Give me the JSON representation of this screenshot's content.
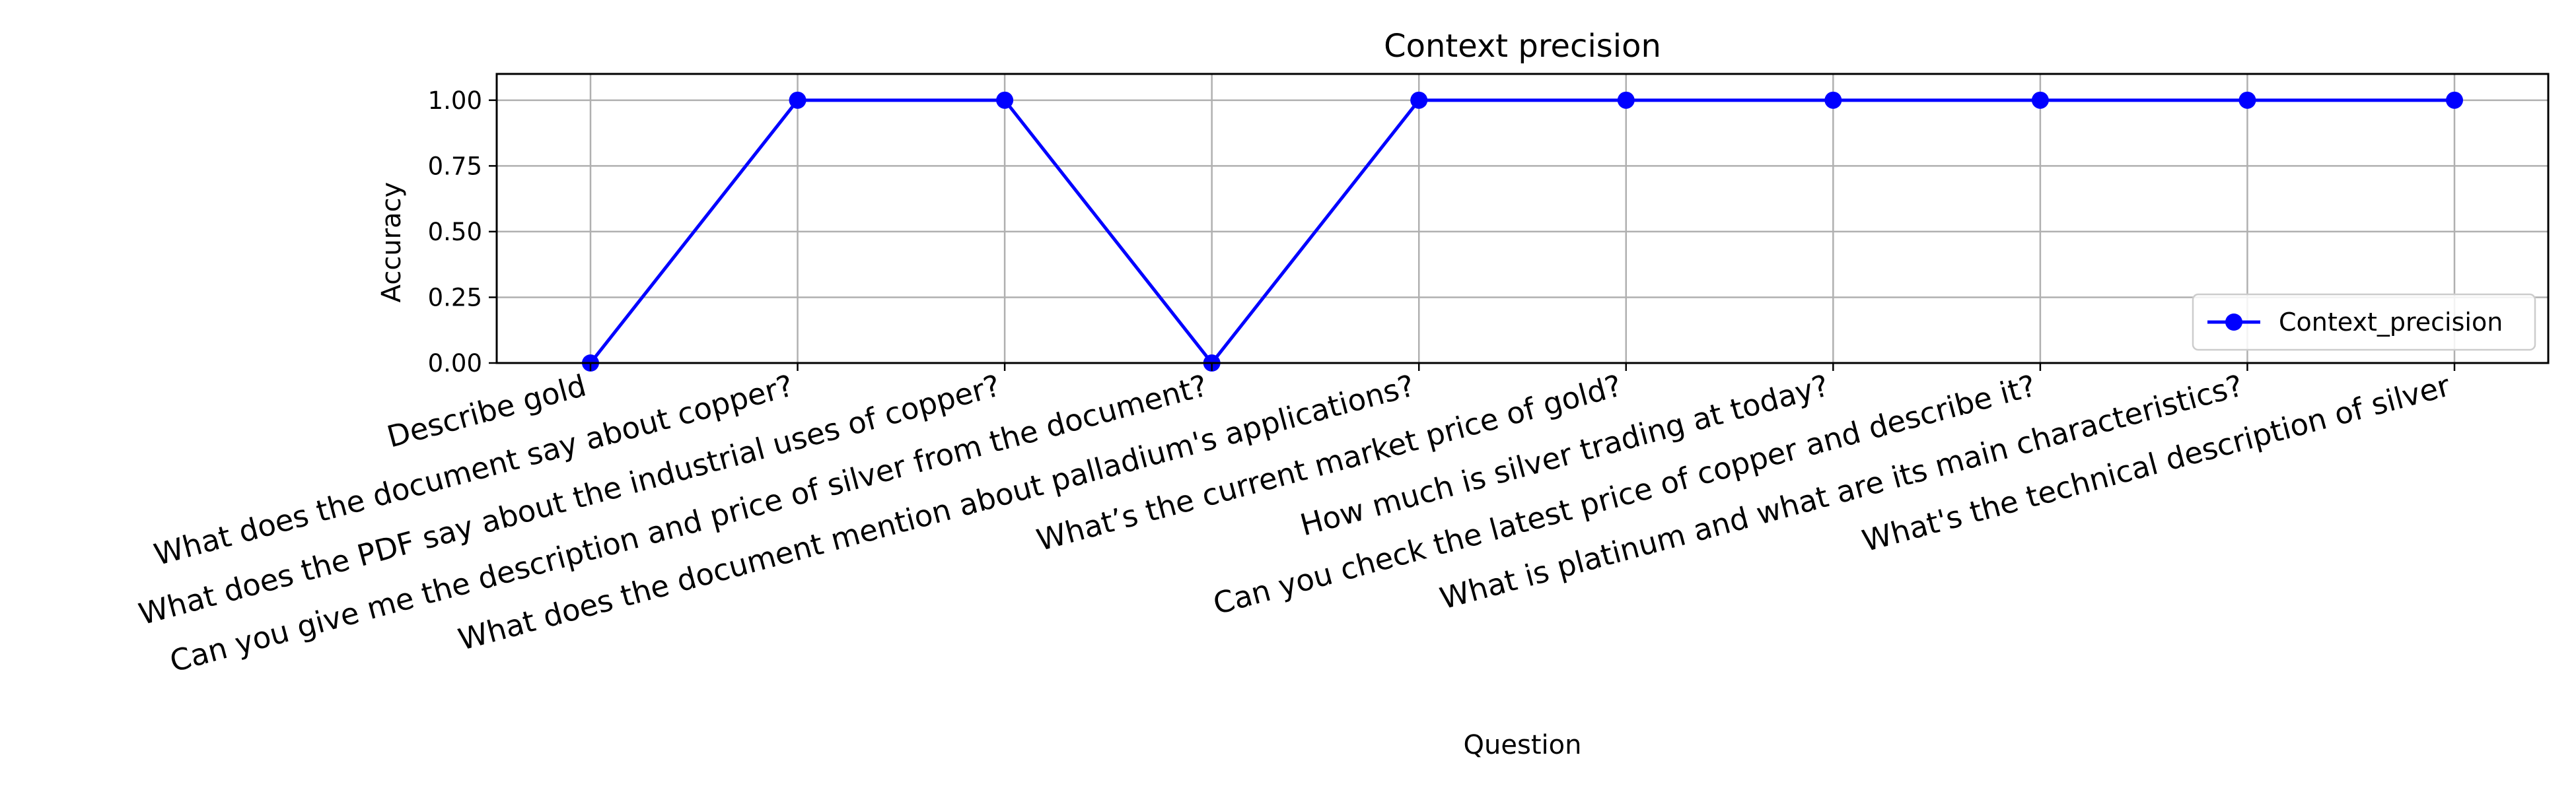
{
  "chart_data": {
    "type": "line",
    "title": "Context precision",
    "xlabel": "Question",
    "ylabel": "Accuracy",
    "ylim": [
      0,
      1.1
    ],
    "yticks": [
      "0.00",
      "0.25",
      "0.50",
      "0.75",
      "1.00"
    ],
    "grid": true,
    "legend_position": "lower-right",
    "categories": [
      "Describe gold",
      "What does the document say about copper?",
      "What does the PDF say about the industrial uses of copper?",
      "Can you give me the description and price of silver from the document?",
      "What does the document mention about palladium's applications?",
      "What’s the current market price of gold?",
      "How much is silver trading at today?",
      "Can you check the latest price of copper and describe it?",
      "What is platinum and what are its main characteristics?",
      "What's the technical description of silver"
    ],
    "series": [
      {
        "name": "Context_precision",
        "color": "#0000ff",
        "values": [
          0,
          1,
          1,
          0,
          1,
          1,
          1,
          1,
          1,
          1
        ]
      }
    ]
  }
}
